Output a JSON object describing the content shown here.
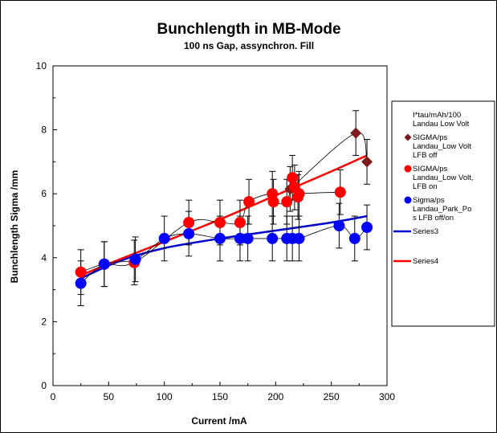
{
  "chart_data": {
    "type": "scatter",
    "title": "Bunchlength in MB-Mode",
    "subtitle": "100 ns Gap, assynchron. Fill",
    "xlabel": "Current /mA",
    "ylabel": "Bunchlength Sigma  /mm",
    "xlim": [
      0,
      300
    ],
    "ylim": [
      0,
      10
    ],
    "x_ticks": [
      "0",
      "50",
      "100",
      "150",
      "200",
      "250",
      "300"
    ],
    "y_ticks": [
      "0",
      "2",
      "4",
      "6",
      "8",
      "10"
    ],
    "grid": false,
    "legend_position": "right",
    "series": [
      {
        "name": "I*tau/mAh/100 Landau Low Volt",
        "marker": "none",
        "color": "#000000",
        "points": []
      },
      {
        "name": "SIGMA/ps Landau_Low Volt LFB off",
        "marker": "diamond",
        "color": "#7f1a1a",
        "connected": true,
        "points": [
          {
            "x": 213,
            "y": 6.15,
            "err": 0.7
          },
          {
            "x": 272,
            "y": 7.9,
            "err": 0.7
          },
          {
            "x": 282,
            "y": 7.0,
            "err": 0.7
          }
        ]
      },
      {
        "name": "SIGMA/ps Landau_Low Volt, LFB on",
        "marker": "circle",
        "color": "#ff0000",
        "connected": true,
        "points": [
          {
            "x": 25,
            "y": 3.55,
            "err": 0.7
          },
          {
            "x": 46,
            "y": 3.8,
            "err": 0.7
          },
          {
            "x": 73,
            "y": 3.85,
            "err": 0.7
          },
          {
            "x": 122,
            "y": 5.1,
            "err": 0.7
          },
          {
            "x": 150,
            "y": 5.1,
            "err": 0.7
          },
          {
            "x": 168,
            "y": 5.1,
            "err": 0.7
          },
          {
            "x": 176,
            "y": 5.75,
            "err": 0.7
          },
          {
            "x": 197,
            "y": 6.0,
            "err": 0.7
          },
          {
            "x": 198,
            "y": 5.75,
            "err": 0.7
          },
          {
            "x": 210,
            "y": 5.75,
            "err": 0.7
          },
          {
            "x": 215,
            "y": 6.5,
            "err": 0.7
          },
          {
            "x": 217,
            "y": 6.2,
            "err": 0.7
          },
          {
            "x": 220,
            "y": 5.9,
            "err": 0.7
          },
          {
            "x": 221,
            "y": 6.0,
            "err": 0.7
          },
          {
            "x": 258,
            "y": 6.05,
            "err": 0.7
          }
        ]
      },
      {
        "name": "Sigma/ps Landau_Park_Po s LFB off/on",
        "marker": "circle",
        "color": "#0000ff",
        "connected": true,
        "points": [
          {
            "x": 25,
            "y": 3.2,
            "err": 0.7
          },
          {
            "x": 46,
            "y": 3.8,
            "err": 0.7
          },
          {
            "x": 74,
            "y": 3.95,
            "err": 0.7
          },
          {
            "x": 100,
            "y": 4.6,
            "err": 0.7
          },
          {
            "x": 122,
            "y": 4.75,
            "err": 0.7
          },
          {
            "x": 150,
            "y": 4.6,
            "err": 0.7
          },
          {
            "x": 168,
            "y": 4.6,
            "err": 0.7
          },
          {
            "x": 175,
            "y": 4.6,
            "err": 0.7
          },
          {
            "x": 197,
            "y": 4.6,
            "err": 0.7
          },
          {
            "x": 210,
            "y": 4.6,
            "err": 0.7
          },
          {
            "x": 215,
            "y": 4.6,
            "err": 0.7
          },
          {
            "x": 221,
            "y": 4.6,
            "err": 0.7
          },
          {
            "x": 257,
            "y": 5.0,
            "err": 0.7
          },
          {
            "x": 271,
            "y": 4.6,
            "err": 0.7
          },
          {
            "x": 282,
            "y": 4.95,
            "err": 0.7
          }
        ]
      },
      {
        "name": "Series3",
        "type": "line",
        "color": "#0000cc",
        "points": [
          {
            "x": 25,
            "y": 3.35
          },
          {
            "x": 60,
            "y": 3.9
          },
          {
            "x": 100,
            "y": 4.3
          },
          {
            "x": 150,
            "y": 4.6
          },
          {
            "x": 200,
            "y": 4.85
          },
          {
            "x": 250,
            "y": 5.1
          },
          {
            "x": 282,
            "y": 5.3
          }
        ]
      },
      {
        "name": "Series4",
        "type": "line",
        "color": "#ff0000",
        "points": [
          {
            "x": 25,
            "y": 3.45
          },
          {
            "x": 60,
            "y": 3.95
          },
          {
            "x": 100,
            "y": 4.5
          },
          {
            "x": 150,
            "y": 5.2
          },
          {
            "x": 200,
            "y": 5.95
          },
          {
            "x": 250,
            "y": 6.7
          },
          {
            "x": 282,
            "y": 7.2
          }
        ]
      }
    ],
    "legend": [
      {
        "lines": [
          "I*tau/mAh/100",
          "Landau Low Volt"
        ],
        "symbol": "none",
        "color": "#000000"
      },
      {
        "lines": [
          "SIGMA/ps",
          "Landau_Low Volt",
          "LFB off"
        ],
        "symbol": "diamond",
        "color": "#7f1a1a"
      },
      {
        "lines": [
          "SIGMA/ps",
          "Landau_Low Volt,",
          "LFB on"
        ],
        "symbol": "circle",
        "color": "#ff0000"
      },
      {
        "lines": [
          "Sigma/ps",
          "Landau_Park_Po",
          "s LFB off/on"
        ],
        "symbol": "circle",
        "color": "#0000ff"
      },
      {
        "lines": [
          "Series3"
        ],
        "symbol": "line",
        "color": "#0000cc"
      },
      {
        "lines": [
          "Series4"
        ],
        "symbol": "line",
        "color": "#ff0000"
      }
    ]
  }
}
